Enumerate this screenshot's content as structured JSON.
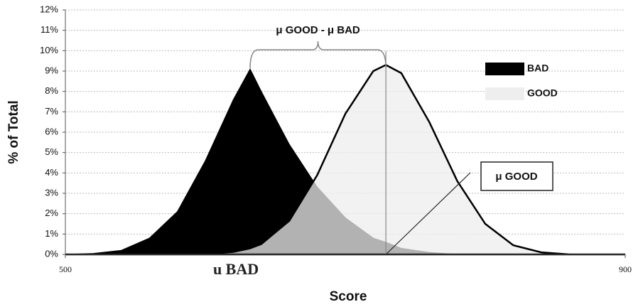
{
  "chart_data": {
    "type": "area",
    "x_label": "Score",
    "y_label": "% of Total",
    "x": [
      500,
      520,
      540,
      560,
      580,
      600,
      620,
      632,
      640,
      660,
      680,
      700,
      720,
      729,
      740,
      760,
      780,
      800,
      820,
      840,
      860,
      880,
      900
    ],
    "series": [
      {
        "name": "BAD",
        "color": "#000000",
        "values": [
          0,
          0.05,
          0.2,
          0.8,
          2.1,
          4.6,
          7.6,
          9.1,
          8.0,
          5.4,
          3.3,
          1.8,
          0.8,
          0.6,
          0.3,
          0.1,
          0,
          0,
          0,
          0,
          0,
          0,
          0
        ]
      },
      {
        "name": "GOOD",
        "color": "#eeeeee",
        "values": [
          0,
          0,
          0,
          0,
          0,
          0.02,
          0.12,
          0.3,
          0.51,
          1.65,
          3.9,
          6.9,
          9.0,
          9.3,
          8.9,
          6.5,
          3.6,
          1.5,
          0.45,
          0.1,
          0,
          0,
          0
        ]
      }
    ],
    "xlim": [
      500,
      900
    ],
    "xticks": [
      500,
      900
    ],
    "ylim": [
      0,
      12
    ],
    "yticks": [
      {
        "value": 0,
        "label": "0%"
      },
      {
        "value": 1,
        "label": "1%"
      },
      {
        "value": 2,
        "label": "2%"
      },
      {
        "value": 3,
        "label": "3%"
      },
      {
        "value": 4,
        "label": "4%"
      },
      {
        "value": 5,
        "label": "5%"
      },
      {
        "value": 6,
        "label": "6%"
      },
      {
        "value": 7,
        "label": "7%"
      },
      {
        "value": 8,
        "label": "8%"
      },
      {
        "value": 9,
        "label": "9%"
      },
      {
        "value": 10,
        "label": "10%"
      },
      {
        "value": 11,
        "label": "11%"
      },
      {
        "value": 12,
        "label": "12%"
      }
    ],
    "grid": true,
    "legend": "upper right",
    "annotations": [
      "μ GOOD - μ BAD",
      "μ GOOD",
      "u BAD"
    ]
  }
}
